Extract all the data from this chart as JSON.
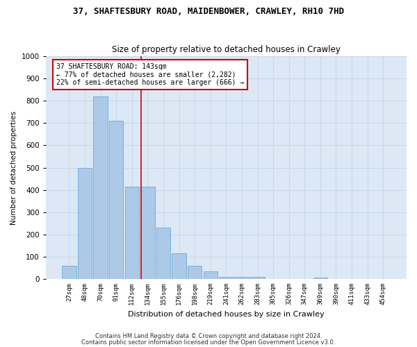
{
  "title1": "37, SHAFTESBURY ROAD, MAIDENBOWER, CRAWLEY, RH10 7HD",
  "title2": "Size of property relative to detached houses in Crawley",
  "xlabel": "Distribution of detached houses by size in Crawley",
  "ylabel": "Number of detached properties",
  "categories": [
    "27sqm",
    "48sqm",
    "70sqm",
    "91sqm",
    "112sqm",
    "134sqm",
    "155sqm",
    "176sqm",
    "198sqm",
    "219sqm",
    "241sqm",
    "262sqm",
    "283sqm",
    "305sqm",
    "326sqm",
    "347sqm",
    "369sqm",
    "390sqm",
    "411sqm",
    "433sqm",
    "454sqm"
  ],
  "values": [
    60,
    500,
    820,
    710,
    415,
    415,
    230,
    115,
    60,
    33,
    10,
    10,
    10,
    0,
    0,
    0,
    5,
    0,
    0,
    0,
    0
  ],
  "bar_color": "#adc9e8",
  "bar_edge_color": "#6aaad4",
  "vline_x_idx": 4.57,
  "vline_color": "#cc0000",
  "annotation_line1": "37 SHAFTESBURY ROAD: 143sqm",
  "annotation_line2": "← 77% of detached houses are smaller (2,282)",
  "annotation_line3": "22% of semi-detached houses are larger (666) →",
  "annotation_box_color": "#ffffff",
  "annotation_box_edge": "#cc0000",
  "ylim": [
    0,
    1000
  ],
  "yticks": [
    0,
    100,
    200,
    300,
    400,
    500,
    600,
    700,
    800,
    900,
    1000
  ],
  "grid_color": "#c8d8ea",
  "background_color": "#dce8f5",
  "footer1": "Contains HM Land Registry data © Crown copyright and database right 2024.",
  "footer2": "Contains public sector information licensed under the Open Government Licence v3.0."
}
